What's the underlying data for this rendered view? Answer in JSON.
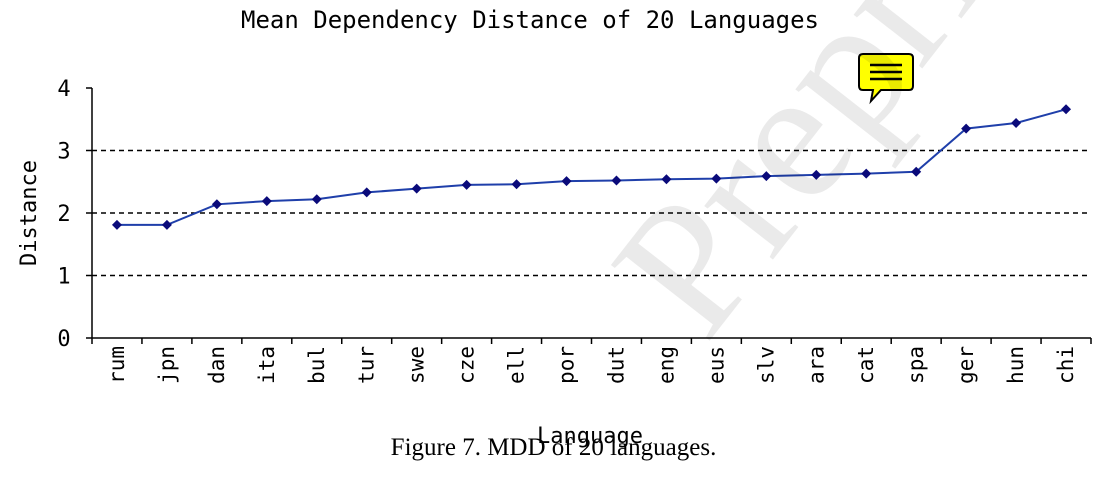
{
  "chart_data": {
    "type": "line",
    "title": "Mean Dependency Distance of 20 Languages",
    "xlabel": "Language",
    "ylabel": "Distance",
    "categories": [
      "rum",
      "jpn",
      "dan",
      "ita",
      "bul",
      "tur",
      "swe",
      "cze",
      "ell",
      "por",
      "dut",
      "eng",
      "eus",
      "slv",
      "ara",
      "cat",
      "spa",
      "ger",
      "hun",
      "chi"
    ],
    "values": [
      1.81,
      1.81,
      2.14,
      2.19,
      2.22,
      2.33,
      2.39,
      2.45,
      2.46,
      2.51,
      2.52,
      2.54,
      2.55,
      2.59,
      2.61,
      2.63,
      2.66,
      3.35,
      3.44,
      3.66
    ],
    "ylim": [
      0,
      4
    ],
    "yticks": [
      "0",
      "1",
      "2",
      "3",
      "4"
    ],
    "grid": "horizontal dashed",
    "line_color": "#1f3faa",
    "marker_color": "#0a0a7a"
  },
  "caption": "Figure 7. MDD of 20 languages.",
  "watermark": "Preprint",
  "note_icon": "sticky-note-icon"
}
